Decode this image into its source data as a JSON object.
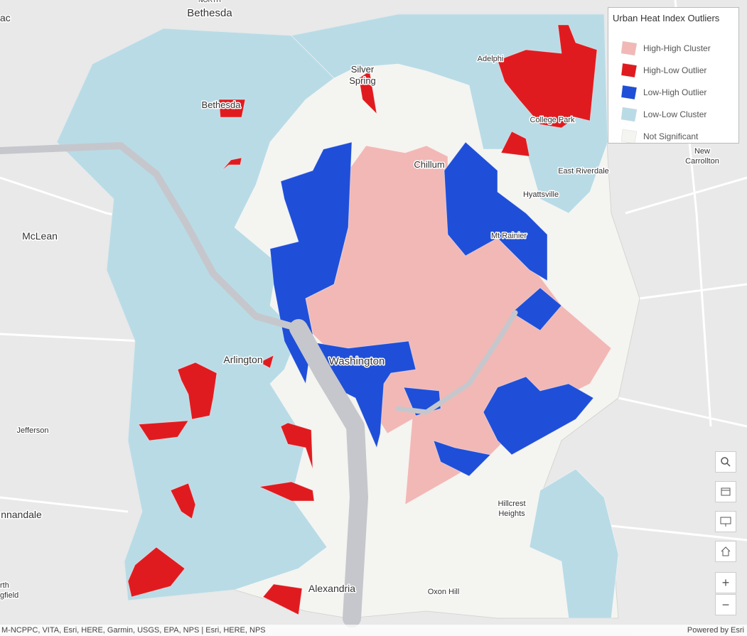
{
  "legend": {
    "title": "Urban Heat Index Outliers",
    "items": [
      {
        "label": "High-High Cluster",
        "color": "#f2b8b5"
      },
      {
        "label": "High-Low Outlier",
        "color": "#e01b1f"
      },
      {
        "label": "Low-High Outlier",
        "color": "#1f4fd8"
      },
      {
        "label": "Low-Low Cluster",
        "color": "#b9dbe6"
      },
      {
        "label": "Not Significant",
        "color": "#f4f4f0"
      }
    ]
  },
  "places": [
    "ac",
    "NORTH",
    "Bethesda",
    [
      "Silver",
      "Spring"
    ],
    "Adelphi",
    "Bethesda",
    "College Park",
    "Chillum",
    [
      "New",
      "Carrollton"
    ],
    "East Riverdale",
    "Hyattsville",
    "McLean",
    "Mt Rainier",
    "Arlington",
    "Washington",
    "Jefferson",
    "nnandale",
    [
      "Hillcrest",
      "Heights"
    ],
    "Alexandria",
    "Oxon Hill",
    [
      "rth",
      "gfield"
    ]
  ],
  "attribution": "M-NCPPC, VITA, Esri, HERE, Garmin, USGS, EPA, NPS | Esri, HERE, NPS",
  "powered_by": "Powered by Esri",
  "controls": {
    "zoom_in": "+",
    "zoom_out": "−"
  }
}
